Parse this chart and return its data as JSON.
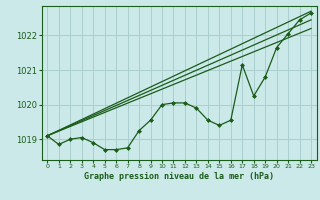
{
  "background_color": "#cce9e9",
  "grid_color": "#aacfcf",
  "line_color": "#1a5c1a",
  "title": "Graphe pression niveau de la mer (hPa)",
  "xlim": [
    -0.5,
    23.5
  ],
  "ylim": [
    1018.4,
    1022.85
  ],
  "yticks": [
    1019,
    1020,
    1021,
    1022
  ],
  "xticks": [
    0,
    1,
    2,
    3,
    4,
    5,
    6,
    7,
    8,
    9,
    10,
    11,
    12,
    13,
    14,
    15,
    16,
    17,
    18,
    19,
    20,
    21,
    22,
    23
  ],
  "pressure_data": [
    1019.1,
    1018.85,
    1019.0,
    1019.05,
    1018.9,
    1018.7,
    1018.7,
    1018.75,
    1019.25,
    1019.55,
    1020.0,
    1020.05,
    1020.05,
    1019.9,
    1019.55,
    1019.4,
    1019.55,
    1021.15,
    1020.25,
    1020.8,
    1021.65,
    1022.05,
    1022.45,
    1022.65
  ],
  "trend_lines": [
    {
      "x0": 0,
      "y0": 1019.1,
      "x1": 23,
      "y1": 1022.7
    },
    {
      "x0": 0,
      "y0": 1019.1,
      "x1": 23,
      "y1": 1022.45
    },
    {
      "x0": 0,
      "y0": 1019.1,
      "x1": 23,
      "y1": 1022.2
    }
  ]
}
